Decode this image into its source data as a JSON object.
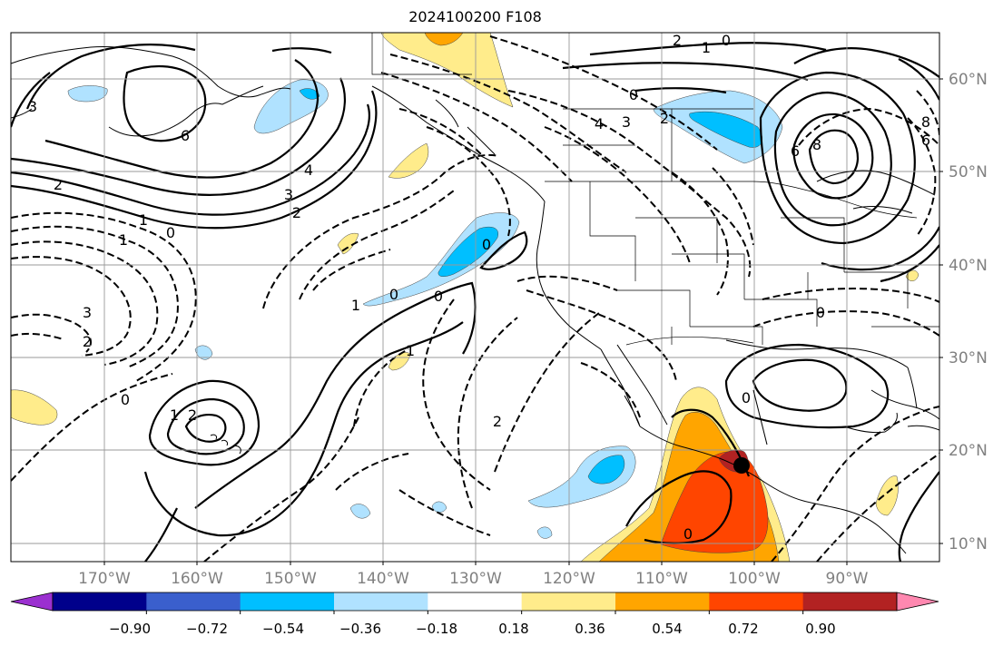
{
  "title": "2024100200 F108",
  "map": {
    "lon_range": [
      -180,
      -80
    ],
    "lat_range": [
      8,
      65
    ],
    "gridlines": true,
    "lon_tick_labels": [
      "170°W",
      "160°W",
      "150°W",
      "140°W",
      "130°W",
      "120°W",
      "110°W",
      "100°W",
      "90°W"
    ],
    "lat_tick_labels": [
      "10°N",
      "20°N",
      "30°N",
      "40°N",
      "50°N",
      "60°N"
    ],
    "marker": {
      "lon": -100,
      "lat": 18.5,
      "shape": "filled-circle",
      "color": "#000000"
    },
    "contour_labels": [
      "3",
      "6",
      "4",
      "3",
      "2",
      "1",
      "0",
      "2",
      "1",
      "3",
      "2",
      "0",
      "1",
      "2",
      "1",
      "0",
      "0",
      "1",
      "2",
      "2",
      "1",
      "0",
      "4",
      "3",
      "2",
      "0",
      "6",
      "8",
      "6",
      "8",
      "0",
      "0",
      "0",
      "0"
    ]
  },
  "colorbar": {
    "extend": "both",
    "colors": [
      "#9b30d0",
      "#00008b",
      "#3a5fcd",
      "#00bfff",
      "#b0e2ff",
      "#ffffff",
      "#ffec8b",
      "#ffa500",
      "#ff4500",
      "#b22222",
      "#ff88b0"
    ],
    "tick_labels": [
      "−0.90",
      "−0.72",
      "−0.54",
      "−0.36",
      "−0.18",
      "0.18",
      "0.36",
      "0.54",
      "0.72",
      "0.90"
    ]
  }
}
